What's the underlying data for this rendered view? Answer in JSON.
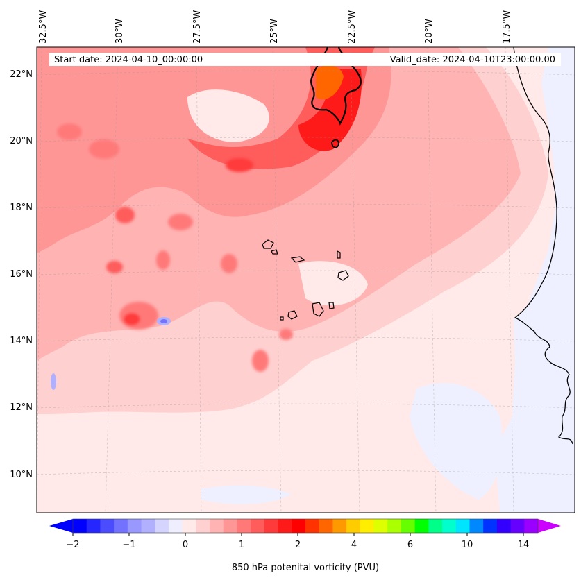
{
  "header": {
    "start_date": "Start date: 2024-04-10_00:00:00",
    "valid_date": "Valid_date: 2024-04-10T23:00:00.00"
  },
  "map": {
    "longitude_labels": [
      "32.5°W",
      "30°W",
      "27.5°W",
      "25°W",
      "22.5°W",
      "20°W",
      "17.5°W"
    ],
    "latitude_labels": [
      "22°N",
      "20°N",
      "18°N",
      "16°N",
      "14°N",
      "12°N",
      "10°N"
    ],
    "extent": {
      "lon_min": -33,
      "lon_max": -15.3,
      "lat_min": 9,
      "lat_max": 22.8
    },
    "background_color": "#ffe9e9",
    "land_color": "#eef0ff"
  },
  "colorbar": {
    "label": "850 hPa potenital vorticity (PVU)",
    "tick_labels": [
      "−2",
      "−1",
      "0",
      "1",
      "2",
      "4",
      "6",
      "10",
      "14"
    ],
    "colors": [
      "#0000ff",
      "#2626ff",
      "#4c4cff",
      "#7272ff",
      "#9898ff",
      "#b0b0ff",
      "#d4d4ff",
      "#eeeeff",
      "#ffe9e9",
      "#ffd0d0",
      "#ffb3b3",
      "#ff9696",
      "#ff7979",
      "#ff5c5c",
      "#ff3a3a",
      "#ff1a1a",
      "#ff0000",
      "#ff3300",
      "#ff6600",
      "#ff9900",
      "#ffcc00",
      "#ffee00",
      "#ddff00",
      "#aaff00",
      "#66ff00",
      "#00ff00",
      "#00ff88",
      "#00ffcc",
      "#00e5ff",
      "#0088ff",
      "#0033ff",
      "#3300ff",
      "#6600ff",
      "#9900ff"
    ],
    "extend_low_color": "#0000ff",
    "extend_high_color": "#cc00ff"
  }
}
